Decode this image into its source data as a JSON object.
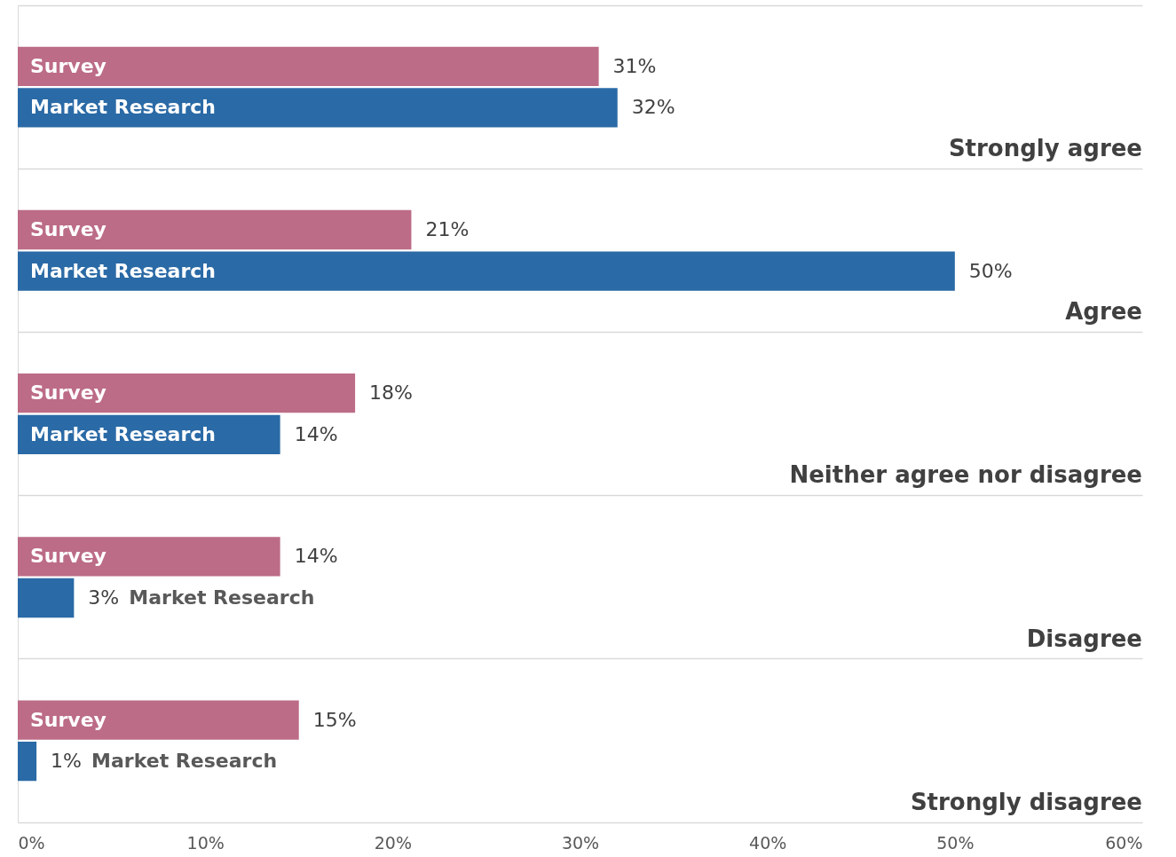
{
  "chart_data": {
    "type": "bar",
    "orientation": "horizontal",
    "categories": [
      "Strongly agree",
      "Agree",
      "Neither agree nor disagree",
      "Disagree",
      "Strongly disagree"
    ],
    "series": [
      {
        "name": "Survey",
        "color": "#bc6c86",
        "values": [
          31,
          21,
          18,
          14,
          15
        ],
        "value_labels": [
          "31%",
          "21%",
          "18%",
          "14%",
          "15%"
        ]
      },
      {
        "name": "Market Research",
        "color": "#2a6aa6",
        "values": [
          32,
          50,
          14,
          3,
          1
        ],
        "value_labels": [
          "32%",
          "50%",
          "14%",
          "3%",
          "1%"
        ]
      }
    ],
    "xlim": [
      0,
      60
    ],
    "xticks": [
      {
        "value": 0,
        "label": "0%"
      },
      {
        "value": 10,
        "label": "10%"
      },
      {
        "value": 20,
        "label": "20%"
      },
      {
        "value": 30,
        "label": "30%"
      },
      {
        "value": 40,
        "label": "40%"
      },
      {
        "value": 50,
        "label": "50%"
      },
      {
        "value": 60,
        "label": "60%"
      }
    ],
    "grid": "y",
    "legend": false
  }
}
